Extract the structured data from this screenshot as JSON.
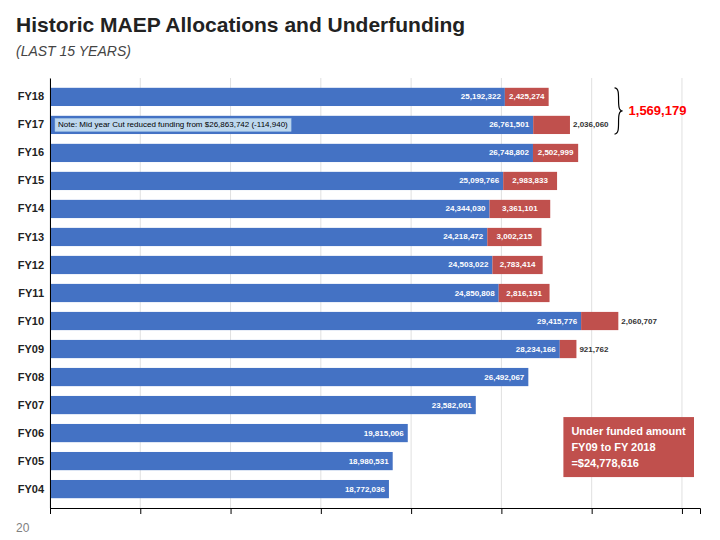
{
  "chart_data": {
    "type": "bar",
    "orientation": "horizontal",
    "stacked": true,
    "title": "Historic MAEP Allocations and Underfunding",
    "subtitle": "(⁠LAST 15 YEARS)",
    "categories": [
      "FY18",
      "FY17",
      "FY16",
      "FY15",
      "FY14",
      "FY13",
      "FY12",
      "FY11",
      "FY10",
      "FY09",
      "FY08",
      "FY07",
      "FY06",
      "FY05",
      "FY04"
    ],
    "series": [
      {
        "color": "#4472C4",
        "values": [
          25192322,
          26761501,
          26748802,
          25099766,
          24344030,
          24218472,
          24503022,
          24850808,
          29415776,
          28234166,
          26492067,
          23582001,
          19815006,
          18980531,
          18772036
        ],
        "value_labels": [
          "25,192,322",
          "26,761,501",
          "26,748,802",
          "25,099,766",
          "24,344,030",
          "24,218,472",
          "24,503,022",
          "24,850,808",
          "29,415,776",
          "28,234,166",
          "26,492,067",
          "23,582,001",
          "19,815,006",
          "18,980,531",
          "18,772,036"
        ]
      },
      {
        "color": "#C0504D",
        "values": [
          2425274,
          2036060,
          2502999,
          2983833,
          3361101,
          3002215,
          2783414,
          2816191,
          2060707,
          921762,
          0,
          0,
          0,
          0,
          0
        ],
        "value_labels": [
          "2,425,274",
          "2,036,060",
          "2,502,999",
          "2,983,833",
          "3,361,101",
          "3,002,215",
          "2,783,414",
          "2,816,191",
          "2,060,707",
          "921,762",
          null,
          null,
          null,
          null,
          null
        ]
      }
    ],
    "xlim": [
      0,
      36000000
    ],
    "xticks": [
      0,
      5000000,
      10000000,
      15000000,
      20000000,
      25000000,
      30000000,
      35000000
    ],
    "grid": true,
    "tick_labels": "y",
    "data_labels": true,
    "annotations": [
      "Note: Mid year Cut reduced funding from $26,863,742 (-114,940)",
      "1,569,179",
      "Under funded amount\nFY09 to FY 2018\n=$24,778,616",
      "20"
    ]
  }
}
